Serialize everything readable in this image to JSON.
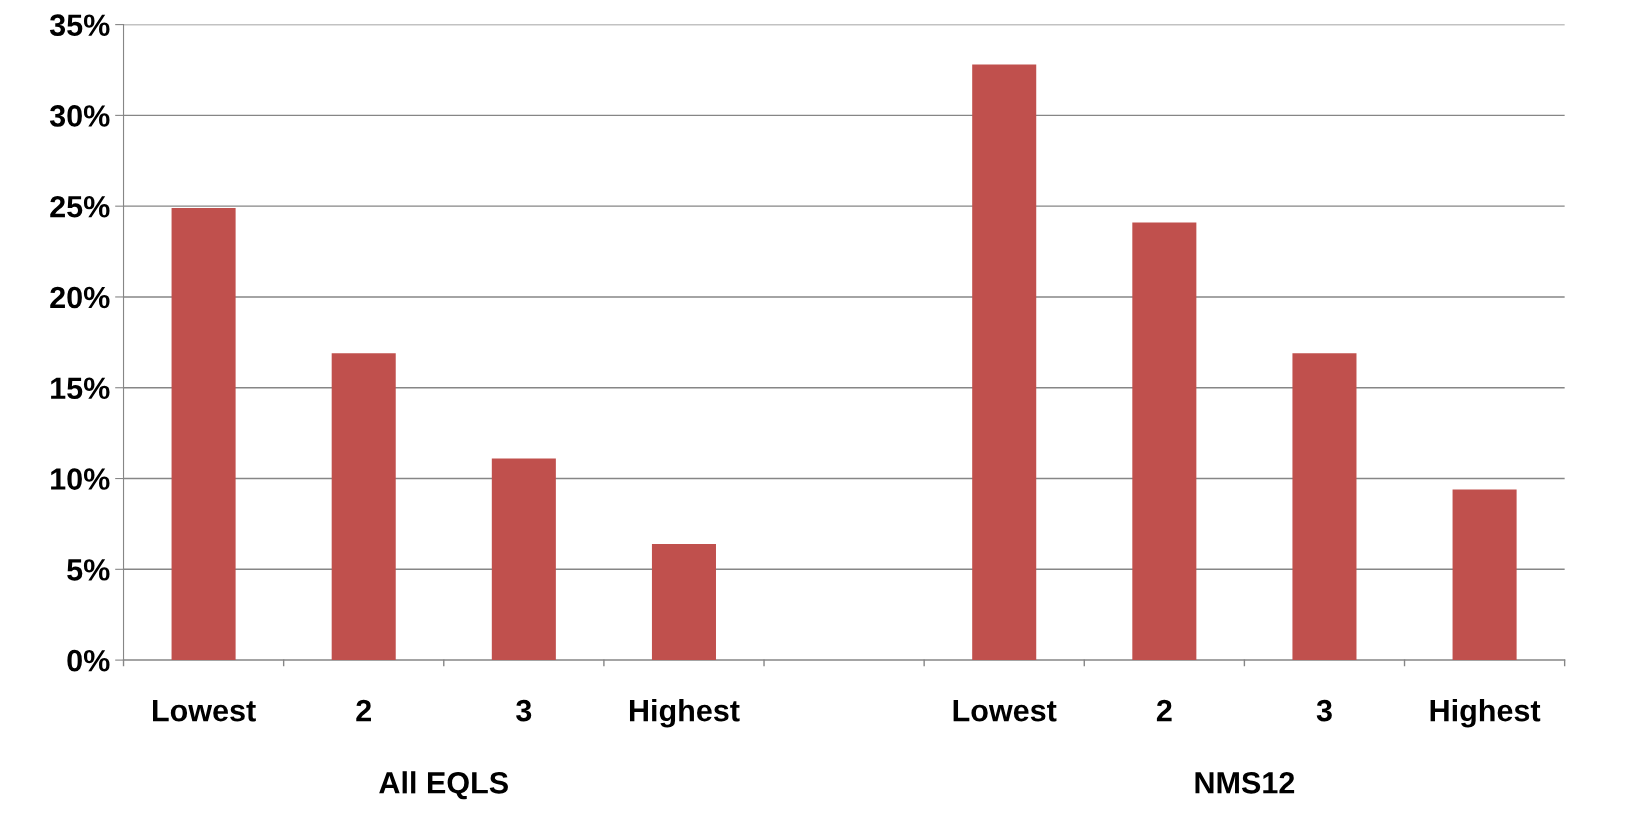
{
  "chart_data": {
    "type": "bar",
    "categories": [
      "Lowest",
      "2",
      "3",
      "Highest",
      null,
      "Lowest",
      "2",
      "3",
      "Highest"
    ],
    "values": [
      24.9,
      16.9,
      11.1,
      6.4,
      null,
      32.8,
      24.1,
      16.9,
      9.4
    ],
    "color": "#c0504d",
    "ylim": [
      0,
      35
    ],
    "yticks": [
      {
        "value": 0,
        "label": "0%"
      },
      {
        "value": 5,
        "label": "5%"
      },
      {
        "value": 10,
        "label": "10%"
      },
      {
        "value": 15,
        "label": "15%"
      },
      {
        "value": 20,
        "label": "20%"
      },
      {
        "value": 25,
        "label": "25%"
      },
      {
        "value": 30,
        "label": "30%"
      },
      {
        "value": 35,
        "label": "35%"
      }
    ],
    "grid": "y",
    "annotations": [
      "All EQLS",
      "NMS12"
    ]
  }
}
